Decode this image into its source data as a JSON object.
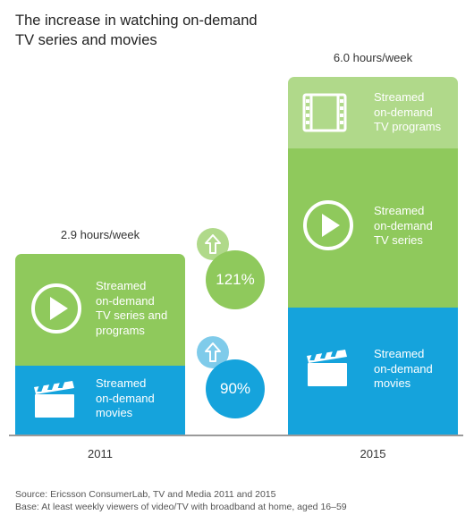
{
  "title": "The increase in watching on-demand\nTV series and movies",
  "chart_data": {
    "type": "bar",
    "categories": [
      "2011",
      "2015"
    ],
    "totals": [
      {
        "year": "2011",
        "label": "2.9 hours/week",
        "hours": 2.9
      },
      {
        "year": "2015",
        "label": "6.0 hours/week",
        "hours": 6.0
      }
    ],
    "stacks": [
      {
        "year": "2011",
        "segments": [
          {
            "label": "Streamed\non-demand\nmovies",
            "share": 0.38,
            "color": "#15a3dc",
            "icon": "clapperboard-icon"
          },
          {
            "label": "Streamed\non-demand\nTV series and\nprograms",
            "share": 0.62,
            "color": "#8fc95c",
            "icon": "play-icon"
          }
        ]
      },
      {
        "year": "2015",
        "segments": [
          {
            "label": "Streamed\non-demand\nmovies",
            "share": 0.35,
            "color": "#15a3dc",
            "icon": "clapperboard-icon"
          },
          {
            "label": "Streamed\non-demand\nTV series",
            "share": 0.45,
            "color": "#8fc95c",
            "icon": "play-icon"
          },
          {
            "label": "Streamed\non-demand\nTV programs",
            "share": 0.2,
            "color": "#b0d98a",
            "icon": "film-strip-icon"
          }
        ]
      }
    ],
    "increases": [
      {
        "label": "121%",
        "category": "TV series and programs",
        "color": "#8fc95c",
        "arrow_color": "#b0d98a"
      },
      {
        "label": "90%",
        "category": "movies",
        "color": "#15a3dc",
        "arrow_color": "#7fcbea"
      }
    ]
  },
  "footer": {
    "source": "Source: Ericsson ConsumerLab, TV and Media 2011 and 2015",
    "base": "Base: At least weekly viewers of video/TV with broadband at home, aged 16–59"
  }
}
